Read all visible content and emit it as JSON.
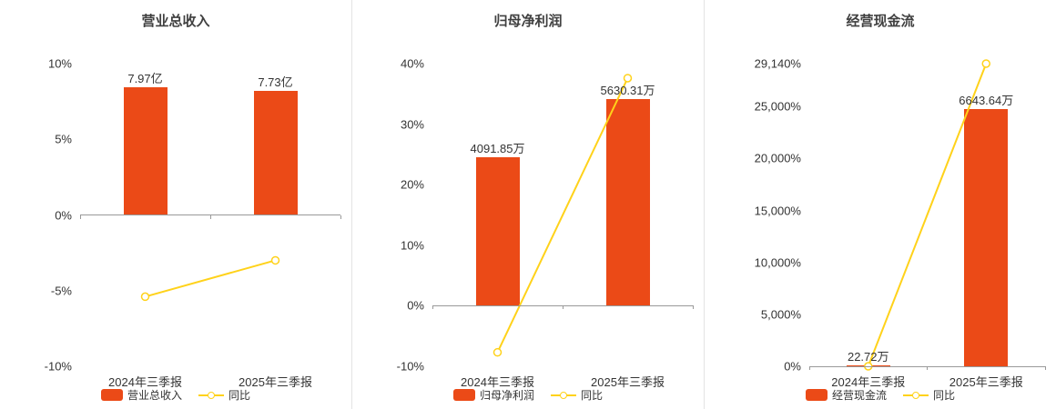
{
  "colors": {
    "bar": "#eb4a17",
    "line": "#ffd21a",
    "marker_fill": "#ffffff",
    "axis_line": "#999999",
    "text": "#333333",
    "title": "#404040",
    "divider": "#e4e4e4",
    "background": "#ffffff"
  },
  "chart_data": [
    {
      "type": "bar",
      "subtype": "bar+line-dual-axis",
      "title": "营业总收入",
      "categories": [
        "2024年三季报",
        "2025年三季报"
      ],
      "legend": [
        "营业总收入",
        "同比"
      ],
      "legend_position": "bottom",
      "grid": false,
      "y_axis": {
        "min": -10,
        "max": 10,
        "ticks": [
          {
            "v": -10,
            "label": "-10%"
          },
          {
            "v": -5,
            "label": "-5%"
          },
          {
            "v": 0,
            "label": "0%"
          },
          {
            "v": 5,
            "label": "5%"
          },
          {
            "v": 10,
            "label": "10%"
          }
        ]
      },
      "bars": {
        "name": "营业总收入",
        "labels": [
          "7.97亿",
          "7.73亿"
        ],
        "values": [
          7.97,
          7.73
        ],
        "unit": "亿",
        "axis_values": [
          8.45,
          8.19
        ]
      },
      "line": {
        "name": "同比",
        "values": [
          -5.4,
          -3.0
        ],
        "unit": "%"
      }
    },
    {
      "type": "bar",
      "subtype": "bar+line-dual-axis",
      "title": "归母净利润",
      "categories": [
        "2024年三季报",
        "2025年三季报"
      ],
      "legend": [
        "归母净利润",
        "同比"
      ],
      "legend_position": "bottom",
      "grid": false,
      "y_axis": {
        "min": -10,
        "max": 40,
        "ticks": [
          {
            "v": -10,
            "label": "-10%"
          },
          {
            "v": 0,
            "label": "0%"
          },
          {
            "v": 10,
            "label": "10%"
          },
          {
            "v": 20,
            "label": "20%"
          },
          {
            "v": 30,
            "label": "30%"
          },
          {
            "v": 40,
            "label": "40%"
          }
        ]
      },
      "bars": {
        "name": "归母净利润",
        "labels": [
          "4091.85万",
          "5630.31万"
        ],
        "values": [
          4091.85,
          5630.31
        ],
        "unit": "万",
        "axis_values": [
          24.6,
          34.1
        ]
      },
      "line": {
        "name": "同比",
        "values": [
          -7.7,
          37.6
        ],
        "unit": "%"
      }
    },
    {
      "type": "bar",
      "subtype": "bar+line-dual-axis",
      "title": "经营现金流",
      "categories": [
        "2024年三季报",
        "2025年三季报"
      ],
      "legend": [
        "经营现金流",
        "同比"
      ],
      "legend_position": "bottom",
      "grid": false,
      "y_axis": {
        "min": 0,
        "max": 29140,
        "ticks": [
          {
            "v": 0,
            "label": "0%"
          },
          {
            "v": 5000,
            "label": "5,000%"
          },
          {
            "v": 10000,
            "label": "10,000%"
          },
          {
            "v": 15000,
            "label": "15,000%"
          },
          {
            "v": 20000,
            "label": "20,000%"
          },
          {
            "v": 25000,
            "label": "25,000%"
          },
          {
            "v": 29140,
            "label": "29,140%"
          }
        ]
      },
      "bars": {
        "name": "经营现金流",
        "labels": [
          "22.72万",
          "6643.64万"
        ],
        "values": [
          22.72,
          6643.64
        ],
        "unit": "万",
        "axis_values": [
          85,
          24766
        ]
      },
      "line": {
        "name": "同比",
        "values": [
          0,
          29140
        ],
        "unit": "%"
      }
    }
  ]
}
